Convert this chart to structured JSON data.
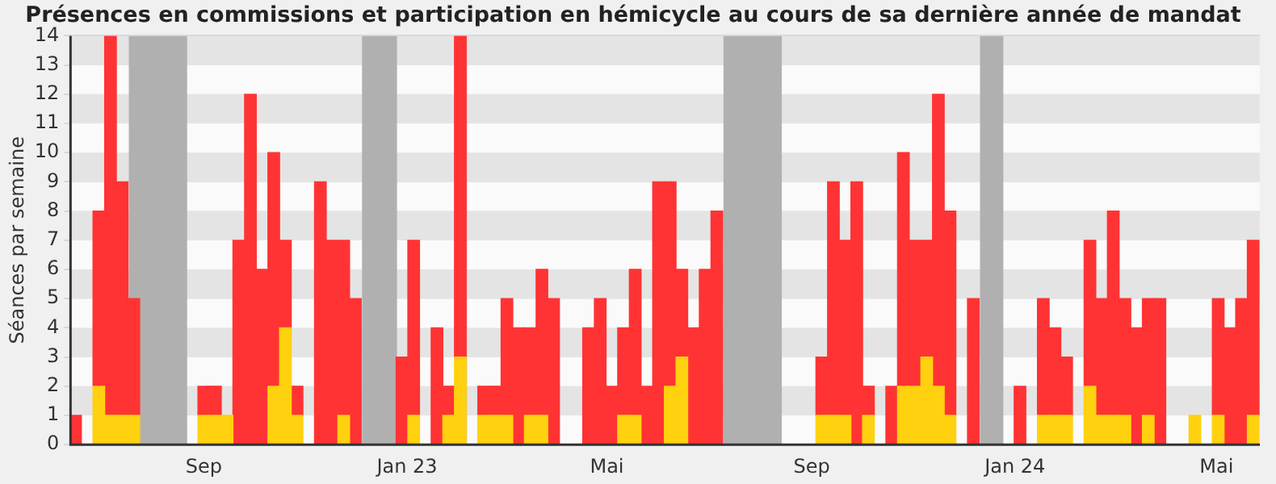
{
  "chart_data": {
    "type": "bar",
    "stacked": true,
    "title": "Présences en commissions et participation en hémicycle au cours de sa dernière année de mandat",
    "ylabel": "Séances par semaine",
    "x": [
      "2022-06-16",
      "2022-06-23",
      "2022-06-30",
      "2022-07-07",
      "2022-07-14",
      "2022-07-21",
      "2022-07-28",
      "2022-08-04",
      "2022-08-11",
      "2022-08-18",
      "2022-08-25",
      "2022-09-01",
      "2022-09-08",
      "2022-09-15",
      "2022-09-22",
      "2022-09-29",
      "2022-10-06",
      "2022-10-13",
      "2022-10-20",
      "2022-10-27",
      "2022-11-03",
      "2022-11-10",
      "2022-11-17",
      "2022-11-24",
      "2022-12-01",
      "2022-12-08",
      "2022-12-15",
      "2022-12-22",
      "2022-12-29",
      "2023-01-05",
      "2023-01-12",
      "2023-01-19",
      "2023-01-26",
      "2023-02-02",
      "2023-02-09",
      "2023-02-16",
      "2023-02-23",
      "2023-03-02",
      "2023-03-09",
      "2023-03-16",
      "2023-03-23",
      "2023-03-30",
      "2023-04-06",
      "2023-04-13",
      "2023-04-20",
      "2023-04-27",
      "2023-05-04",
      "2023-05-11",
      "2023-05-18",
      "2023-05-25",
      "2023-06-01",
      "2023-06-08",
      "2023-06-15",
      "2023-06-22",
      "2023-06-29",
      "2023-07-06",
      "2023-07-13",
      "2023-07-20",
      "2023-07-27",
      "2023-08-03",
      "2023-08-10",
      "2023-08-17",
      "2023-08-24",
      "2023-08-31",
      "2023-09-07",
      "2023-09-14",
      "2023-09-21",
      "2023-09-28",
      "2023-10-05",
      "2023-10-12",
      "2023-10-19",
      "2023-10-26",
      "2023-11-02",
      "2023-11-09",
      "2023-11-16",
      "2023-11-23",
      "2023-11-30",
      "2023-12-07",
      "2023-12-14",
      "2023-12-21",
      "2023-12-28",
      "2024-01-04",
      "2024-01-11",
      "2024-01-18",
      "2024-01-25",
      "2024-02-01",
      "2024-02-08",
      "2024-02-15",
      "2024-02-22",
      "2024-02-29",
      "2024-03-07",
      "2024-03-14",
      "2024-03-21",
      "2024-03-28",
      "2024-04-04",
      "2024-04-11",
      "2024-04-18",
      "2024-04-25",
      "2024-05-02",
      "2024-05-09",
      "2024-05-16",
      "2024-05-23"
    ],
    "series": [
      {
        "color": "#ffd10f",
        "values": [
          null,
          null,
          2,
          1,
          1,
          1,
          null,
          null,
          null,
          null,
          null,
          1,
          1,
          1,
          null,
          null,
          null,
          2,
          4,
          1,
          null,
          null,
          null,
          1,
          null,
          null,
          null,
          null,
          null,
          1,
          null,
          null,
          1,
          3,
          null,
          1,
          1,
          1,
          null,
          1,
          1,
          null,
          null,
          null,
          null,
          null,
          null,
          1,
          1,
          null,
          null,
          2,
          3,
          null,
          null,
          null,
          null,
          null,
          null,
          null,
          null,
          null,
          null,
          null,
          1,
          1,
          1,
          null,
          1,
          null,
          null,
          2,
          2,
          3,
          2,
          1,
          null,
          null,
          null,
          null,
          null,
          null,
          null,
          1,
          1,
          1,
          null,
          2,
          1,
          1,
          1,
          null,
          1,
          null,
          null,
          null,
          1,
          null,
          1,
          null,
          null,
          1
        ]
      },
      {
        "color": "#ff3333",
        "values": [
          1,
          null,
          6,
          13,
          8,
          4,
          null,
          null,
          null,
          null,
          null,
          1,
          1,
          null,
          7,
          12,
          6,
          8,
          3,
          1,
          null,
          9,
          7,
          6,
          5,
          null,
          null,
          null,
          3,
          6,
          null,
          4,
          1,
          11,
          null,
          1,
          1,
          4,
          4,
          3,
          5,
          5,
          null,
          null,
          4,
          5,
          2,
          3,
          5,
          2,
          9,
          7,
          3,
          4,
          6,
          8,
          null,
          null,
          null,
          null,
          null,
          null,
          null,
          null,
          2,
          8,
          6,
          9,
          1,
          null,
          2,
          8,
          5,
          4,
          10,
          7,
          null,
          5,
          null,
          null,
          null,
          2,
          null,
          4,
          3,
          2,
          null,
          5,
          4,
          7,
          4,
          4,
          4,
          5,
          null,
          null,
          null,
          null,
          4,
          4,
          5,
          6
        ]
      }
    ],
    "xlim": [
      "2022-06-13",
      "2024-05-27"
    ],
    "xticks": [
      {
        "value": "2022-09-01",
        "label": "Sep"
      },
      {
        "value": "2023-01-01",
        "label": "Jan 23"
      },
      {
        "value": "2023-05-01",
        "label": "Mai"
      },
      {
        "value": "2023-09-01",
        "label": "Sep"
      },
      {
        "value": "2024-01-01",
        "label": "Jan 24"
      },
      {
        "value": "2024-05-01",
        "label": "Mai"
      }
    ],
    "ylim": [
      0,
      14
    ],
    "yticks": [
      0,
      1,
      2,
      3,
      4,
      5,
      6,
      7,
      8,
      9,
      10,
      11,
      12,
      13,
      14
    ],
    "grid": "y",
    "bands": [
      {
        "axis": "x",
        "from": "2022-07-18",
        "to": "2022-08-22",
        "color": "#b0b0b0"
      },
      {
        "axis": "x",
        "from": "2022-12-05",
        "to": "2022-12-26",
        "color": "#b0b0b0"
      },
      {
        "axis": "x",
        "from": "2023-01-30",
        "to": "2023-02-06",
        "color": "#b0b0b0"
      },
      {
        "axis": "x",
        "from": "2023-07-10",
        "to": "2023-08-14",
        "color": "#b0b0b0"
      },
      {
        "axis": "x",
        "from": "2023-12-11",
        "to": "2023-12-25",
        "color": "#b0b0b0"
      }
    ]
  }
}
